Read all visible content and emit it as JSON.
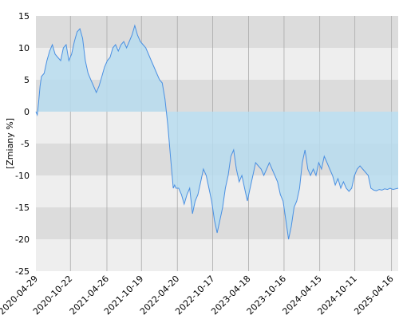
{
  "chart_data": {
    "type": "area",
    "title": "",
    "xlabel": "",
    "ylabel": "[Zmiany %]",
    "ylim": [
      -25,
      15
    ],
    "yticks": [
      15,
      10,
      5,
      0,
      -5,
      -10,
      -15,
      -20,
      -25
    ],
    "xticks": [
      "2020-04-29",
      "2020-10-22",
      "2021-04-26",
      "2021-10-19",
      "2022-04-20",
      "2022-10-17",
      "2023-04-18",
      "2023-10-16",
      "2024-04-15",
      "2024-10-11",
      "2025-04-16"
    ],
    "x_range": [
      "2020-04-29",
      "2025-05-20"
    ],
    "grid": true,
    "legend": "none",
    "colors": {
      "line": "#4a90e2",
      "fill": "#b7dcef",
      "band_dark": "#dcdcdc",
      "band_light": "#eeeeee",
      "grid": "#aaaaaa"
    },
    "series": [
      {
        "x": [
          "2020-04-29",
          "2020-05-06",
          "2020-05-13",
          "2020-05-20",
          "2020-05-27",
          "2020-06-10",
          "2020-06-24",
          "2020-07-08",
          "2020-07-22",
          "2020-08-05",
          "2020-08-19",
          "2020-09-02",
          "2020-09-16",
          "2020-09-30",
          "2020-10-14",
          "2020-10-28",
          "2020-11-11",
          "2020-11-25",
          "2020-12-09",
          "2020-12-23",
          "2021-01-06",
          "2021-01-20",
          "2021-02-03",
          "2021-02-17",
          "2021-03-03",
          "2021-03-17",
          "2021-03-31",
          "2021-04-14",
          "2021-04-28",
          "2021-05-12",
          "2021-05-26",
          "2021-06-09",
          "2021-06-23",
          "2021-07-07",
          "2021-07-21",
          "2021-08-04",
          "2021-08-18",
          "2021-09-01",
          "2021-09-15",
          "2021-09-29",
          "2021-10-13",
          "2021-10-27",
          "2021-11-10",
          "2021-11-24",
          "2021-12-08",
          "2021-12-22",
          "2022-01-05",
          "2022-01-19",
          "2022-02-02",
          "2022-02-16",
          "2022-03-02",
          "2022-03-16",
          "2022-03-30",
          "2022-04-06",
          "2022-04-13",
          "2022-04-27",
          "2022-05-11",
          "2022-05-25",
          "2022-06-08",
          "2022-06-22",
          "2022-07-06",
          "2022-07-20",
          "2022-08-03",
          "2022-08-17",
          "2022-08-31",
          "2022-09-14",
          "2022-09-28",
          "2022-10-12",
          "2022-10-26",
          "2022-11-09",
          "2022-11-23",
          "2022-12-07",
          "2022-12-21",
          "2023-01-04",
          "2023-01-18",
          "2023-02-01",
          "2023-02-15",
          "2023-03-01",
          "2023-03-15",
          "2023-03-29",
          "2023-04-12",
          "2023-04-26",
          "2023-05-10",
          "2023-05-24",
          "2023-06-07",
          "2023-06-21",
          "2023-07-05",
          "2023-07-19",
          "2023-08-02",
          "2023-08-16",
          "2023-08-30",
          "2023-09-13",
          "2023-09-27",
          "2023-10-11",
          "2023-10-25",
          "2023-11-08",
          "2023-11-22",
          "2023-12-06",
          "2023-12-20",
          "2024-01-03",
          "2024-01-17",
          "2024-01-31",
          "2024-02-14",
          "2024-02-28",
          "2024-03-13",
          "2024-03-27",
          "2024-04-10",
          "2024-04-24",
          "2024-05-08",
          "2024-05-22",
          "2024-06-05",
          "2024-06-19",
          "2024-07-03",
          "2024-07-17",
          "2024-07-31",
          "2024-08-14",
          "2024-08-28",
          "2024-09-11",
          "2024-09-25",
          "2024-10-09",
          "2024-10-23",
          "2024-11-06",
          "2024-11-20",
          "2024-12-04",
          "2024-12-18",
          "2025-01-01",
          "2025-01-15",
          "2025-01-29",
          "2025-02-12",
          "2025-02-26",
          "2025-03-12",
          "2025-03-26",
          "2025-04-09",
          "2025-04-23",
          "2025-05-07",
          "2025-05-20"
        ],
        "y": [
          0,
          -0.5,
          1.5,
          4,
          5.5,
          6,
          8,
          9.5,
          10.5,
          9,
          8.5,
          8,
          10,
          10.5,
          8,
          9,
          11,
          12.5,
          13,
          11.5,
          8,
          6,
          5,
          4,
          3,
          4,
          5.5,
          7,
          8,
          8.5,
          10,
          10.5,
          9.5,
          10.5,
          11,
          10,
          11,
          12,
          13.5,
          12,
          11,
          10.5,
          10,
          9,
          8,
          7,
          6,
          5,
          4.5,
          2,
          -2,
          -7,
          -12,
          -11.5,
          -12,
          -12,
          -13,
          -14.5,
          -13,
          -12,
          -16,
          -14,
          -13,
          -11,
          -9,
          -10,
          -12,
          -14,
          -17,
          -19,
          -17,
          -15,
          -12,
          -10,
          -7,
          -6,
          -9,
          -11,
          -10,
          -12,
          -14,
          -12,
          -10,
          -8,
          -8.5,
          -9,
          -10,
          -9,
          -8,
          -9,
          -10,
          -11,
          -13,
          -14,
          -17,
          -20,
          -18,
          -15,
          -14,
          -12,
          -8,
          -6,
          -9,
          -10,
          -9,
          -10,
          -8,
          -9,
          -7,
          -8,
          -9,
          -10,
          -11.5,
          -10.5,
          -12,
          -11,
          -12,
          -12.5,
          -12,
          -10,
          -9,
          -8.5,
          -9,
          -9.5,
          -10,
          -12,
          -12.3,
          -12.4,
          -12.2,
          -12.3,
          -12.1,
          -12.2,
          -12.0,
          -12.2,
          -12.1,
          -12.0
        ]
      }
    ]
  }
}
